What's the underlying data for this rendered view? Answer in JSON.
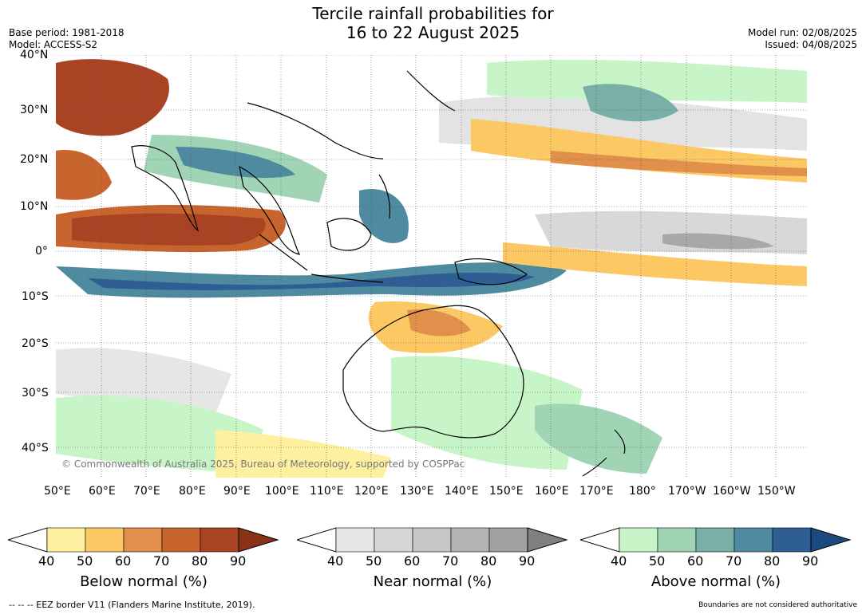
{
  "title_line1": "Tercile rainfall probabilities for",
  "title_line2": "16 to 22 August 2025",
  "base_period": "Base period: 1981-2018",
  "model": "Model: ACCESS-S2",
  "model_run": "Model run: 02/08/2025",
  "issued": "Issued: 04/08/2025",
  "copyright": "© Commonwealth of Australia 2025, Bureau of Meteorology, supported by COSPPac",
  "lat_labels": [
    "40°N",
    "30°N",
    "20°N",
    "10°N",
    "0°",
    "10°S",
    "20°S",
    "30°S",
    "40°S"
  ],
  "lon_labels": [
    "50°E",
    "60°E",
    "70°E",
    "80°E",
    "90°E",
    "100°E",
    "110°E",
    "120°E",
    "130°E",
    "140°E",
    "150°E",
    "160°E",
    "170°E",
    "180°",
    "170°W",
    "160°W",
    "150°W"
  ],
  "colorbars": [
    {
      "label": "Below normal (%)",
      "ticks": [
        "40",
        "50",
        "60",
        "70",
        "80",
        "90"
      ],
      "colors": [
        "#fff0a0",
        "#fbc863",
        "#e0904a",
        "#c8642e",
        "#a84424"
      ],
      "extend": "#8a3218"
    },
    {
      "label": "Near normal (%)",
      "ticks": [
        "40",
        "50",
        "60",
        "70",
        "80",
        "90"
      ],
      "colors": [
        "#e6e6e6",
        "#d6d6d6",
        "#c6c6c6",
        "#b4b4b4",
        "#a0a0a0"
      ],
      "extend": "#808080"
    },
    {
      "label": "Above normal (%)",
      "ticks": [
        "40",
        "50",
        "60",
        "70",
        "80",
        "90"
      ],
      "colors": [
        "#c8f5c8",
        "#a0d4b4",
        "#78b0a8",
        "#4e8aa0",
        "#2e5e94"
      ],
      "extend": "#1a4a80"
    }
  ],
  "eez_note": "--  --  -- EEZ border V11 (Flanders Marine Institute, 2019).",
  "boundary_note": "Boundaries are not considered authoritative"
}
